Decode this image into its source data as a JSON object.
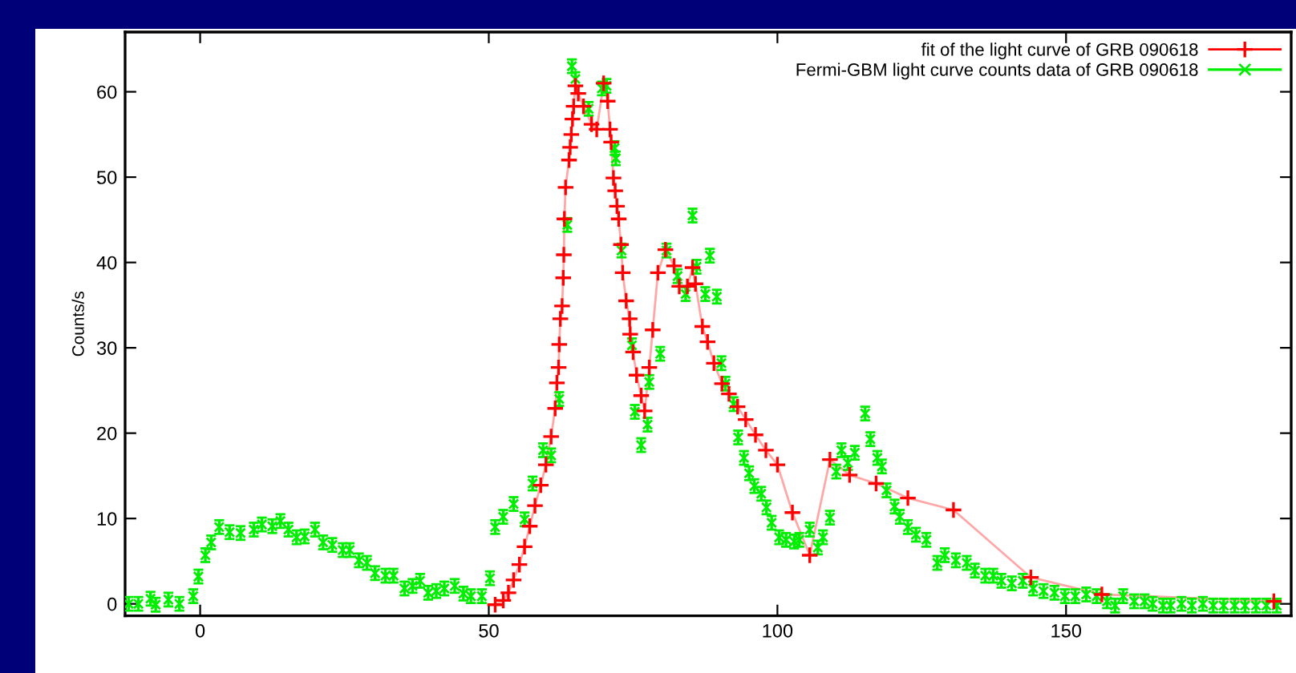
{
  "chart_data": {
    "type": "scatter",
    "ylabel": "Counts/s",
    "xlim": [
      -13,
      189
    ],
    "ylim": [
      -1.4,
      67
    ],
    "xticks": [
      0,
      50,
      100,
      150
    ],
    "yticks": [
      0,
      10,
      20,
      30,
      40,
      50,
      60
    ],
    "grid": false,
    "legend": "top right",
    "series": [
      {
        "name": "fit of the light curve of GRB 090618",
        "type": "line",
        "color": "#ff0000",
        "marker": "cross",
        "x": [
          51.1,
          52.5,
          53.4,
          54.3,
          55.3,
          56.2,
          57.1,
          58,
          59,
          59.9,
          60.8,
          61.5,
          61.8,
          62.1,
          62.2,
          62.4,
          62.7,
          62.9,
          63,
          63.1,
          63.3,
          63.9,
          64.1,
          64.3,
          64.5,
          64.7,
          65,
          65.5,
          66.4,
          67.8,
          68.7,
          69.9,
          70.6,
          71,
          71.2,
          71.6,
          71.9,
          72.2,
          72.5,
          72.9,
          73.2,
          73.8,
          74.4,
          74.5,
          75,
          75.6,
          76.4,
          77,
          77.8,
          78.4,
          79.3,
          80.6,
          82.1,
          83,
          84.4,
          85.3,
          85.8,
          87,
          87.9,
          89,
          90.4,
          91.6,
          93.1,
          94.5,
          96.2,
          98,
          100,
          102.6,
          105.6,
          109.1,
          112.5,
          117.1,
          122.6,
          130.5,
          143.9,
          156.2,
          186
        ],
        "values": [
          -0.1,
          0.4,
          1.3,
          2.8,
          4.6,
          6.7,
          9.1,
          11.5,
          13.9,
          16.3,
          19.6,
          22.9,
          25.9,
          27.7,
          30.4,
          33.4,
          34.9,
          38.2,
          40.9,
          45.1,
          48.8,
          52,
          53.5,
          55,
          56.8,
          58.3,
          60.7,
          59.8,
          58.3,
          56.2,
          55.6,
          61,
          58.9,
          55.6,
          54.1,
          49.9,
          48.4,
          46.6,
          45.1,
          42.1,
          38.8,
          35.5,
          33.4,
          31.6,
          29.5,
          26.8,
          24.4,
          22.6,
          27.7,
          32.1,
          38.8,
          41.5,
          39.6,
          37.2,
          37.2,
          39.4,
          37.5,
          32.5,
          30.7,
          28.2,
          25.8,
          24.6,
          23.1,
          21.6,
          19.8,
          18,
          16.3,
          10.7,
          5.7,
          16.9,
          15.1,
          14.1,
          12.4,
          11,
          3.1,
          1.1,
          0.3
        ]
      },
      {
        "name": "Fermi-GBM light curve counts data of GRB 090618",
        "color": "#00ee00",
        "marker": "cross",
        "x": [
          -12.4,
          -10.7,
          -8.6,
          -7.7,
          -5.5,
          -3.6,
          -1.2,
          -0.3,
          0.9,
          1.9,
          3.3,
          5.1,
          7,
          9.3,
          10.7,
          12.5,
          13.9,
          15.3,
          16.7,
          18.1,
          19.9,
          21.3,
          22.9,
          24.7,
          25.9,
          27.5,
          28.9,
          30.3,
          32.1,
          33.5,
          35.4,
          36.8,
          38.1,
          39.5,
          40.9,
          42.3,
          44.1,
          45.6,
          46.9,
          48.8,
          50.2,
          51.1,
          52.5,
          54.3,
          56.2,
          57.6,
          59.4,
          60.8,
          62.2,
          63.6,
          64.4,
          65,
          67.3,
          69.6,
          70.4,
          71.8,
          72,
          73,
          74.8,
          75.3,
          76.4,
          77.5,
          77.8,
          79.7,
          80.8,
          82.7,
          84.1,
          85.3,
          86,
          87.5,
          88.3,
          89.5,
          90.3,
          91,
          92.4,
          93.2,
          94.2,
          95.1,
          96,
          97.2,
          98.1,
          99,
          100.3,
          101.5,
          102.9,
          103.8,
          105.6,
          107,
          107.9,
          109.1,
          110.2,
          111.1,
          112.2,
          113.4,
          115.2,
          116.1,
          117.3,
          118.1,
          118.9,
          120.3,
          121.2,
          122.6,
          124,
          125.8,
          127.7,
          129,
          130.9,
          132.8,
          134.2,
          136,
          137.4,
          138.8,
          140.6,
          142.5,
          144.3,
          146.1,
          148,
          149.8,
          151.6,
          153.5,
          155.3,
          157.1,
          158.5,
          159.9,
          161.8,
          163.6,
          165,
          166.8,
          168.1,
          170,
          171.8,
          173.7,
          175.5,
          177.3,
          179.2,
          181,
          182.9,
          184.7,
          186.5
        ],
        "values": [
          0,
          0,
          0.6,
          -0.1,
          0.5,
          0,
          0.9,
          3.2,
          5.7,
          7.2,
          9,
          8.4,
          8.3,
          8.7,
          9.3,
          9.1,
          9.7,
          8.7,
          7.8,
          7.9,
          8.7,
          7.2,
          6.9,
          6.3,
          6.3,
          5.1,
          4.8,
          3.6,
          3.3,
          3.3,
          1.8,
          2.1,
          2.7,
          1.3,
          1.5,
          1.8,
          2.1,
          1.2,
          0.9,
          0.9,
          3,
          9,
          10.2,
          11.7,
          9.9,
          14.1,
          18,
          17.4,
          24,
          44.4,
          63,
          61.5,
          58,
          60.4,
          60.7,
          53.4,
          52.2,
          41.4,
          30.3,
          22.5,
          18.6,
          21,
          26,
          29.3,
          41.4,
          38.4,
          36.3,
          45.5,
          39.5,
          36.3,
          40.8,
          36,
          28.2,
          25.8,
          23.4,
          19.5,
          17.1,
          15.3,
          13.8,
          12.9,
          11.3,
          9.5,
          7.8,
          7.5,
          7.3,
          7.5,
          8.7,
          6.6,
          7.8,
          10.1,
          15.5,
          18,
          16.5,
          17.7,
          22.3,
          19.3,
          17.1,
          16.1,
          13.3,
          11.4,
          10.2,
          9,
          8.1,
          7.5,
          4.8,
          5.7,
          5.1,
          4.8,
          3.9,
          3.3,
          3.3,
          2.7,
          2.4,
          2.7,
          1.8,
          1.5,
          1.3,
          0.9,
          0.9,
          1.1,
          0.9,
          0.3,
          -0.2,
          0.9,
          0.3,
          0.3,
          0,
          -0.2,
          -0.2,
          0,
          -0.2,
          0,
          -0.2,
          -0.2,
          -0.2,
          -0.2,
          -0.2,
          -0.2,
          -0.2
        ],
        "errors": [
          0.8,
          0.8,
          0.8,
          0.8,
          0.8,
          0.8,
          0.8,
          0.8,
          0.8,
          0.8,
          0.8,
          0.8,
          0.8,
          0.8,
          0.8,
          0.8,
          0.8,
          0.8,
          0.8,
          0.8,
          0.8,
          0.8,
          0.8,
          0.8,
          0.8,
          0.8,
          0.8,
          0.8,
          0.8,
          0.8,
          0.8,
          0.8,
          0.8,
          0.8,
          0.8,
          0.8,
          0.8,
          0.8,
          0.8,
          0.8,
          0.8,
          0.8,
          0.8,
          0.8,
          0.8,
          0.8,
          0.8,
          0.8,
          0.8,
          0.8,
          0.8,
          0.8,
          0.8,
          0.8,
          0.8,
          0.8,
          0.8,
          0.8,
          0.8,
          0.8,
          0.8,
          0.8,
          0.8,
          0.8,
          0.8,
          0.8,
          0.8,
          0.8,
          0.8,
          0.8,
          0.8,
          0.8,
          0.8,
          0.8,
          0.8,
          0.8,
          0.8,
          0.8,
          0.8,
          0.8,
          0.8,
          0.8,
          0.8,
          0.8,
          0.8,
          0.8,
          0.8,
          0.8,
          0.8,
          0.8,
          0.8,
          0.8,
          0.8,
          0.8,
          0.8,
          0.8,
          0.8,
          0.8,
          0.8,
          0.8,
          0.8,
          0.8,
          0.8,
          0.8,
          0.8,
          0.8,
          0.8,
          0.8,
          0.8,
          0.8,
          0.8,
          0.8,
          0.8,
          0.8,
          0.8,
          0.8,
          0.8,
          0.8,
          0.8,
          0.8,
          0.8,
          0.8,
          0.8,
          0.8,
          0.8,
          0.8,
          0.8,
          0.8,
          0.8,
          0.8,
          0.8,
          0.8,
          0.8,
          0.8,
          0.8,
          0.8,
          0.8,
          0.8,
          0.8
        ]
      }
    ]
  }
}
